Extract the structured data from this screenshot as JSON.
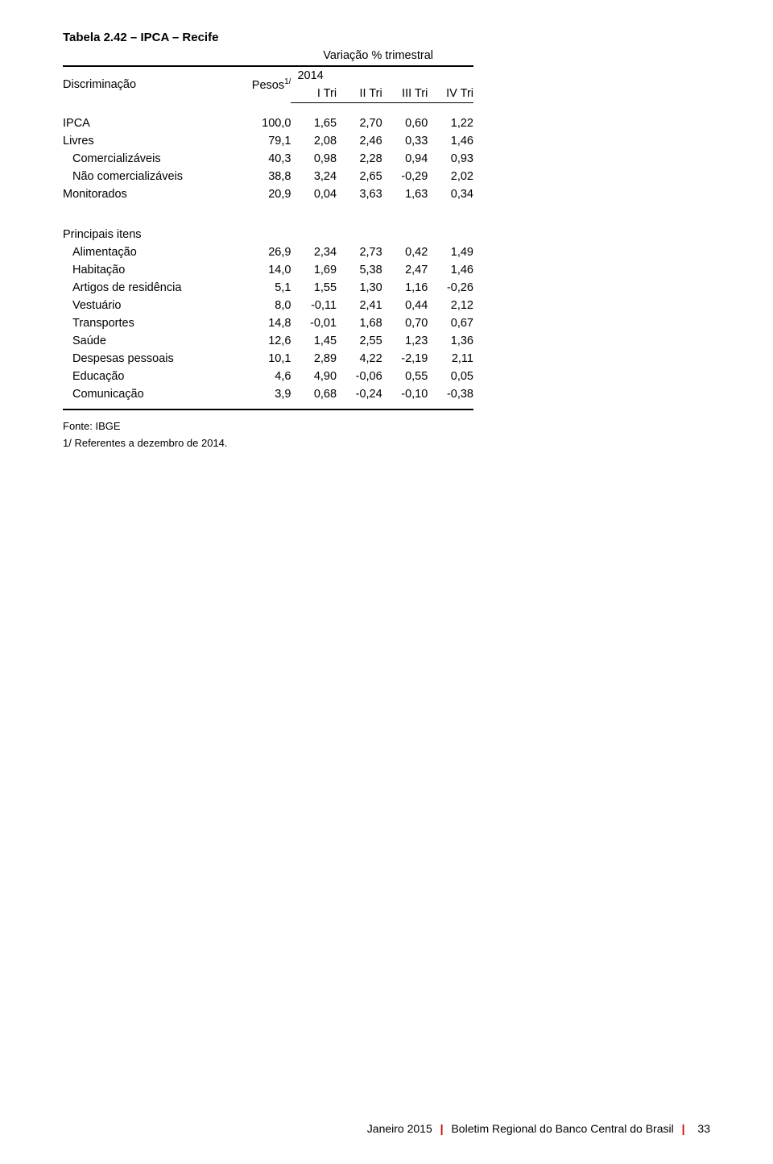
{
  "table": {
    "title": "Tabela 2.42 – IPCA – Recife",
    "subtitle": "Variação % trimestral",
    "columns": {
      "disc": "Discriminação",
      "pesos_html": "Pesos",
      "pesos_sup": "1/",
      "year": "2014",
      "q1": "I Tri",
      "q2": "II Tri",
      "q3": "III Tri",
      "q4": "IV Tri"
    },
    "rows": [
      {
        "label": "IPCA",
        "pesos": "100,0",
        "v": [
          "1,65",
          "2,70",
          "0,60",
          "1,22"
        ],
        "indent": false
      },
      {
        "label": "Livres",
        "pesos": "79,1",
        "v": [
          "2,08",
          "2,46",
          "0,33",
          "1,46"
        ],
        "indent": false
      },
      {
        "label": "Comercializáveis",
        "pesos": "40,3",
        "v": [
          "0,98",
          "2,28",
          "0,94",
          "0,93"
        ],
        "indent": true
      },
      {
        "label": "Não comercializáveis",
        "pesos": "38,8",
        "v": [
          "3,24",
          "2,65",
          "-0,29",
          "2,02"
        ],
        "indent": true
      },
      {
        "label": "Monitorados",
        "pesos": "20,9",
        "v": [
          "0,04",
          "3,63",
          "1,63",
          "0,34"
        ],
        "indent": false
      }
    ],
    "section2_title": "Principais itens",
    "rows2": [
      {
        "label": "Alimentação",
        "pesos": "26,9",
        "v": [
          "2,34",
          "2,73",
          "0,42",
          "1,49"
        ],
        "indent": true
      },
      {
        "label": "Habitação",
        "pesos": "14,0",
        "v": [
          "1,69",
          "5,38",
          "2,47",
          "1,46"
        ],
        "indent": true
      },
      {
        "label": "Artigos de residência",
        "pesos": "5,1",
        "v": [
          "1,55",
          "1,30",
          "1,16",
          "-0,26"
        ],
        "indent": true
      },
      {
        "label": "Vestuário",
        "pesos": "8,0",
        "v": [
          "-0,11",
          "2,41",
          "0,44",
          "2,12"
        ],
        "indent": true
      },
      {
        "label": "Transportes",
        "pesos": "14,8",
        "v": [
          "-0,01",
          "1,68",
          "0,70",
          "0,67"
        ],
        "indent": true
      },
      {
        "label": "Saúde",
        "pesos": "12,6",
        "v": [
          "1,45",
          "2,55",
          "1,23",
          "1,36"
        ],
        "indent": true
      },
      {
        "label": "Despesas pessoais",
        "pesos": "10,1",
        "v": [
          "2,89",
          "4,22",
          "-2,19",
          "2,11"
        ],
        "indent": true
      },
      {
        "label": "Educação",
        "pesos": "4,6",
        "v": [
          "4,90",
          "-0,06",
          "0,55",
          "0,05"
        ],
        "indent": true
      },
      {
        "label": "Comunicação",
        "pesos": "3,9",
        "v": [
          "0,68",
          "-0,24",
          "-0,10",
          "-0,38"
        ],
        "indent": true
      }
    ],
    "footnotes": [
      "Fonte: IBGE",
      "1/ Referentes a dezembro de 2014."
    ]
  },
  "footer": {
    "left": "Janeiro 2015",
    "right": "Boletim Regional do Banco Central do Brasil",
    "page": "33"
  },
  "colors": {
    "text": "#000000",
    "background": "#ffffff",
    "divider": "#c00000"
  }
}
